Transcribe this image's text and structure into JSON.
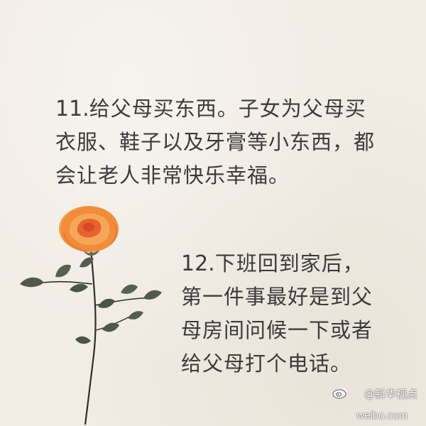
{
  "tip11": {
    "number": "11.",
    "lines": [
      "给父母买东西。子女为父母买",
      "衣服、鞋子以及牙膏等小东西，都",
      "会让老人非常快乐幸福。"
    ]
  },
  "tip12": {
    "number": "12.",
    "lines": [
      "下班回到家后，",
      "第一件事最好是到父",
      "母房间问候一下或者",
      "给父母打个电话。"
    ]
  },
  "watermark": {
    "account": "@新华视点",
    "site": "weibo.com"
  },
  "colors": {
    "background": "#f1ece4",
    "text": "#3b3b3b",
    "rose_petal": "#f08a3c",
    "rose_center": "#e2512b",
    "leaf": "#4f5a4a",
    "stem": "#2f2f2a"
  },
  "icons": {
    "flower": "rose-illustration",
    "logo": "weibo-logo-icon"
  }
}
